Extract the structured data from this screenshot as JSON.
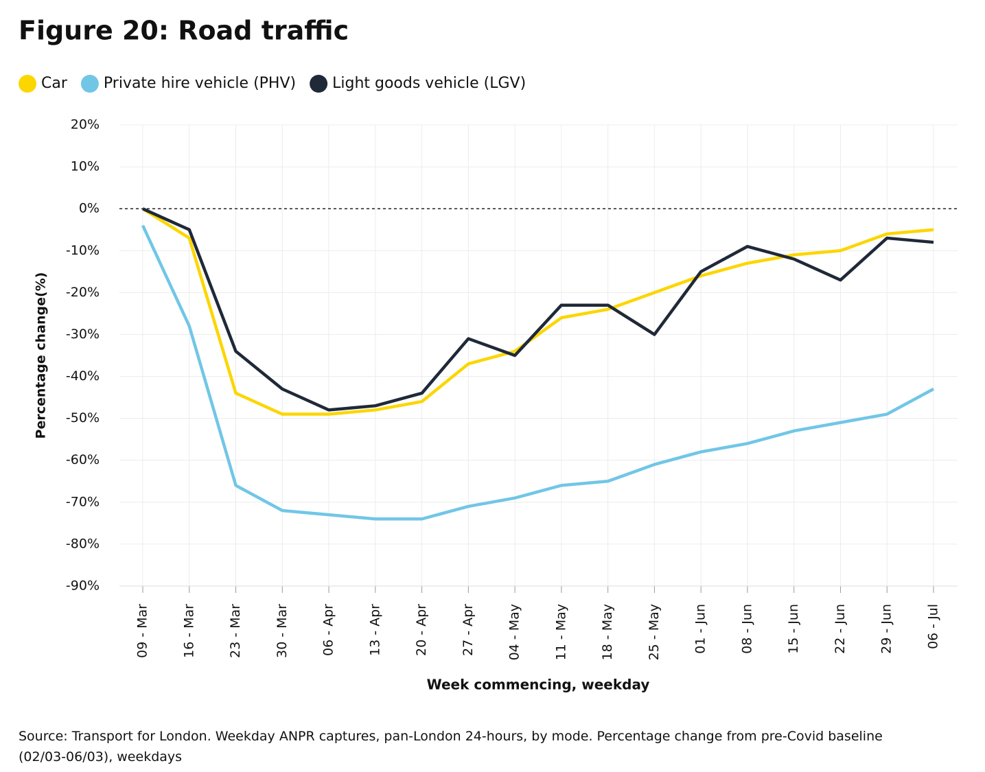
{
  "chart_data": {
    "type": "line",
    "title": "Figure 20: Road traffic",
    "y_label": "Percentage change(%)",
    "x_label": "Week commencing, weekday",
    "source": "Source: Transport for London. Weekday ANPR captures, pan-London 24-hours, by mode. Percentage change from pre-Covid baseline (02/03-06/03), weekdays",
    "categories": [
      "09 - Mar",
      "16 - Mar",
      "23 - Mar",
      "30 - Mar",
      "06 - Apr",
      "13 - Apr",
      "20 - Apr",
      "27 - Apr",
      "04 - May",
      "11 - May",
      "18 - May",
      "25 - May",
      "01 - Jun",
      "08 - Jun",
      "15 - Jun",
      "22 - Jun",
      "29 - Jun",
      "06 - Jul"
    ],
    "series": [
      {
        "name": "Car",
        "color": "#fcd601",
        "values": [
          0,
          -7,
          -44,
          -49,
          -49,
          -48,
          -46,
          -37,
          -34,
          -26,
          -24,
          -20,
          -16,
          -13,
          -11,
          -10,
          -6,
          -5
        ]
      },
      {
        "name": "Private hire vehicle (PHV)",
        "color": "#71c6e6",
        "values": [
          -4,
          -28,
          -66,
          -72,
          -73,
          -74,
          -74,
          -71,
          -69,
          -66,
          -65,
          -61,
          -58,
          -56,
          -53,
          -51,
          -49,
          -43
        ]
      },
      {
        "name": "Light goods vehicle (LGV)",
        "color": "#1f2938",
        "values": [
          0,
          -5,
          -34,
          -43,
          -48,
          -47,
          -44,
          -31,
          -35,
          -23,
          -23,
          -30,
          -15,
          -9,
          -12,
          -17,
          -7,
          -8
        ]
      }
    ],
    "ylim": [
      -90,
      20
    ],
    "yticks": [
      {
        "value": 20,
        "label": "20%"
      },
      {
        "value": 10,
        "label": "10%"
      },
      {
        "value": 0,
        "label": "0%"
      },
      {
        "value": -10,
        "label": "-10%"
      },
      {
        "value": -20,
        "label": "-20%"
      },
      {
        "value": -30,
        "label": "-30%"
      },
      {
        "value": -40,
        "label": "-40%"
      },
      {
        "value": -50,
        "label": "-50%"
      },
      {
        "value": -60,
        "label": "-60%"
      },
      {
        "value": -70,
        "label": "-70%"
      },
      {
        "value": -80,
        "label": "-80%"
      },
      {
        "value": -90,
        "label": "-90%"
      }
    ],
    "reference_line": 0,
    "grid": true,
    "legend": "top"
  }
}
